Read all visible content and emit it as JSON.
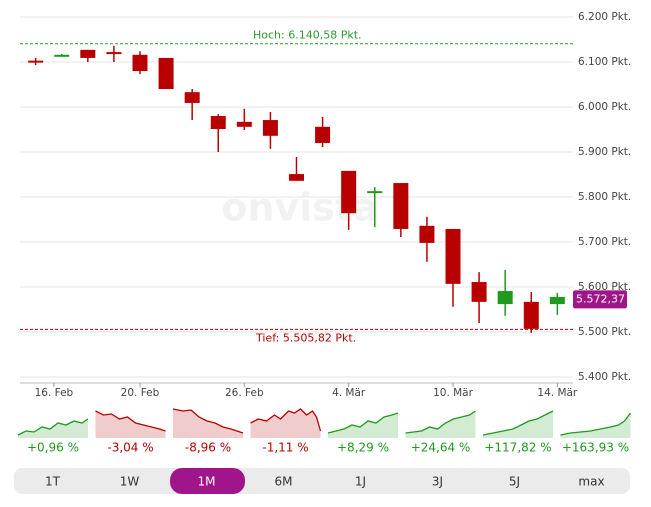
{
  "chart_data": {
    "type": "candlestick",
    "watermark": "onvista",
    "x": [
      0,
      1,
      2,
      3,
      4,
      5,
      6,
      7,
      8,
      9,
      10,
      11,
      12,
      13,
      14,
      15,
      16,
      17,
      18,
      19,
      20
    ],
    "open": [
      6103,
      6113,
      6127,
      6122,
      6116,
      6109,
      6033,
      5980,
      5967,
      5971,
      5851,
      5956,
      5858,
      5809,
      5831,
      5736,
      5729,
      5611,
      5562,
      5567,
      5562
    ],
    "high": [
      6109,
      6118,
      6127,
      6136,
      6124,
      6109,
      6040,
      5984,
      5996,
      5989,
      5889,
      5978,
      5858,
      5822,
      5831,
      5756,
      5729,
      5633,
      5638,
      5589,
      5587
    ],
    "low": [
      6093,
      6112,
      6100,
      6100,
      6073,
      6040,
      5971,
      5900,
      5949,
      5907,
      5836,
      5911,
      5727,
      5733,
      5711,
      5656,
      5556,
      5520,
      5536,
      5498,
      5538
    ],
    "close": [
      6100,
      6116,
      6109,
      6120,
      6080,
      6040,
      6009,
      5951,
      5956,
      5936,
      5836,
      5920,
      5764,
      5813,
      5729,
      5698,
      5607,
      5567,
      5591,
      5507,
      5578
    ],
    "up_color": "#1f9a1f",
    "down_color": "#b80000",
    "xlim": [
      -0.6,
      20.6
    ],
    "xticks": [
      {
        "value": 0.7,
        "label": "16. Feb"
      },
      {
        "value": 4,
        "label": "20. Feb"
      },
      {
        "value": 8,
        "label": "26. Feb"
      },
      {
        "value": 12,
        "label": "4. Mär"
      },
      {
        "value": 16,
        "label": "10. Mär"
      },
      {
        "value": 20,
        "label": "14. Mär"
      }
    ],
    "ylim": [
      5400,
      6200
    ],
    "yticks": [
      {
        "value": 5400,
        "label": "5.400 Pkt."
      },
      {
        "value": 5500,
        "label": "5.500 Pkt."
      },
      {
        "value": 5600,
        "label": "5.600 Pkt."
      },
      {
        "value": 5700,
        "label": "5.700 Pkt."
      },
      {
        "value": 5800,
        "label": "5.800 Pkt."
      },
      {
        "value": 5900,
        "label": "5.900 Pkt."
      },
      {
        "value": 6000,
        "label": "6.000 Pkt."
      },
      {
        "value": 6100,
        "label": "6.100 Pkt."
      },
      {
        "value": 6200,
        "label": "6.200 Pkt."
      }
    ],
    "grid": true,
    "high_line": {
      "value": 6140.58,
      "label": "Hoch: 6.140,58 Pkt.",
      "color": "#2e9a2e"
    },
    "low_line": {
      "value": 5505.82,
      "label": "Tief: 5.505,82 Pkt.",
      "color": "#b80000"
    },
    "last_price": {
      "value": 5572.37,
      "label": "5.572,37",
      "color": "#a0168a"
    }
  },
  "performance": [
    {
      "label": "+0,96 %",
      "color": "#1f9a1f"
    },
    {
      "label": "-3,04 %",
      "color": "#b80000"
    },
    {
      "label": "-8,96 %",
      "color": "#b80000"
    },
    {
      "label": "-1,11 %",
      "color": "#b80000"
    },
    {
      "label": "+8,29 %",
      "color": "#1f9a1f"
    },
    {
      "label": "+24,64 %",
      "color": "#1f9a1f"
    },
    {
      "label": "+117,82 %",
      "color": "#1f9a1f"
    },
    {
      "label": "+163,93 %",
      "color": "#1f9a1f"
    }
  ],
  "tabs": [
    "1T",
    "1W",
    "1M",
    "6M",
    "1J",
    "3J",
    "5J",
    "max"
  ],
  "active_tab": 2
}
